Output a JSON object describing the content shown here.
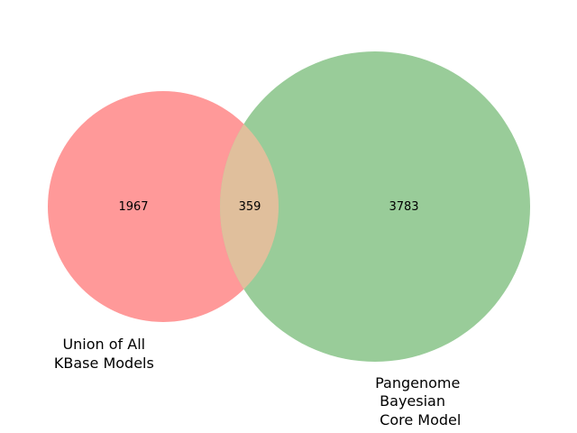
{
  "venn": {
    "sets": [
      {
        "label_lines": [
          "Union of All",
          "KBase Models"
        ],
        "only_count": "1967",
        "color": "#ff9999"
      },
      {
        "label_lines": [
          " Pangenome",
          "  Bayesian",
          "  Core Model"
        ],
        "only_count": "3783",
        "color": "#99cc99"
      }
    ],
    "intersection": {
      "count": "359",
      "color": "#e0bf9c"
    }
  }
}
